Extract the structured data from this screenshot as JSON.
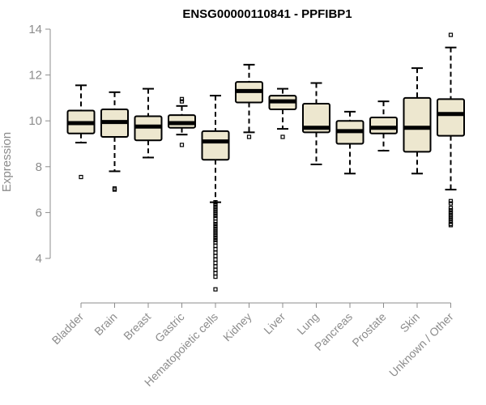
{
  "chart_data": {
    "type": "box",
    "title": "ENSG00000110841 - PPFIBP1",
    "xlabel": "",
    "ylabel": "Expression",
    "ylim": [
      2.5,
      14.3
    ],
    "yticks": [
      4,
      6,
      8,
      10,
      12,
      14
    ],
    "ytick_labels": [
      "4",
      "6",
      "8",
      "10",
      "12",
      "14"
    ],
    "grid": false,
    "legend": "none",
    "box_fill_color": "#ede7cf",
    "box_stroke_color": "#000000",
    "axis_color": "#8c8c8c",
    "categories": [
      "Bladder",
      "Brain",
      "Breast",
      "Gastric",
      "Hematopoietic cells",
      "Kidney",
      "Liver",
      "Lung",
      "Pancreas",
      "Prostate",
      "Skin",
      "Unknown / Other"
    ],
    "boxes": [
      {
        "category": "Bladder",
        "whisker_low": 9.05,
        "q1": 9.45,
        "median": 9.9,
        "q3": 10.45,
        "whisker_high": 11.55,
        "outliers": [
          7.55
        ]
      },
      {
        "category": "Brain",
        "whisker_low": 7.8,
        "q1": 9.3,
        "median": 9.95,
        "q3": 10.5,
        "whisker_high": 11.25,
        "outliers": [
          7.0,
          7.05
        ]
      },
      {
        "category": "Breast",
        "whisker_low": 8.4,
        "q1": 9.15,
        "median": 9.75,
        "q3": 10.2,
        "whisker_high": 11.4,
        "outliers": []
      },
      {
        "category": "Gastric",
        "whisker_low": 9.4,
        "q1": 9.7,
        "median": 9.9,
        "q3": 10.25,
        "whisker_high": 10.65,
        "outliers": [
          8.95,
          10.85,
          10.95
        ]
      },
      {
        "category": "Hematopoietic cells",
        "whisker_low": 6.45,
        "q1": 8.3,
        "median": 9.1,
        "q3": 9.55,
        "whisker_high": 11.1,
        "outliers": [
          6.45,
          6.35,
          6.25,
          6.15,
          6.05,
          5.95,
          5.85,
          5.75,
          5.6,
          5.5,
          5.4,
          5.3,
          5.2,
          5.1,
          5.0,
          4.9,
          4.8,
          4.7,
          4.55,
          4.4,
          4.25,
          4.1,
          3.95,
          3.8,
          3.65,
          3.5,
          3.35,
          3.2,
          2.65
        ]
      },
      {
        "category": "Kidney",
        "whisker_low": 9.5,
        "q1": 10.8,
        "median": 11.3,
        "q3": 11.7,
        "whisker_high": 12.45,
        "outliers": [
          9.3
        ]
      },
      {
        "category": "Liver",
        "whisker_low": 9.65,
        "q1": 10.5,
        "median": 10.85,
        "q3": 11.1,
        "whisker_high": 11.4,
        "outliers": [
          9.3
        ]
      },
      {
        "category": "Lung",
        "whisker_low": 8.1,
        "q1": 9.5,
        "median": 9.7,
        "q3": 10.75,
        "whisker_high": 11.65,
        "outliers": []
      },
      {
        "category": "Pancreas",
        "whisker_low": 7.7,
        "q1": 9.0,
        "median": 9.55,
        "q3": 10.0,
        "whisker_high": 10.4,
        "outliers": []
      },
      {
        "category": "Prostate",
        "whisker_low": 8.7,
        "q1": 9.45,
        "median": 9.7,
        "q3": 10.15,
        "whisker_high": 10.85,
        "outliers": []
      },
      {
        "category": "Skin",
        "whisker_low": 7.7,
        "q1": 8.65,
        "median": 9.7,
        "q3": 11.0,
        "whisker_high": 12.3,
        "outliers": []
      },
      {
        "category": "Unknown / Other",
        "whisker_low": 7.0,
        "q1": 9.35,
        "median": 10.3,
        "q3": 10.95,
        "whisker_high": 13.2,
        "outliers": [
          13.75,
          6.5,
          6.4,
          6.2,
          6.1,
          6.0,
          5.9,
          5.8,
          5.7,
          5.6,
          5.5,
          5.45
        ]
      }
    ]
  }
}
